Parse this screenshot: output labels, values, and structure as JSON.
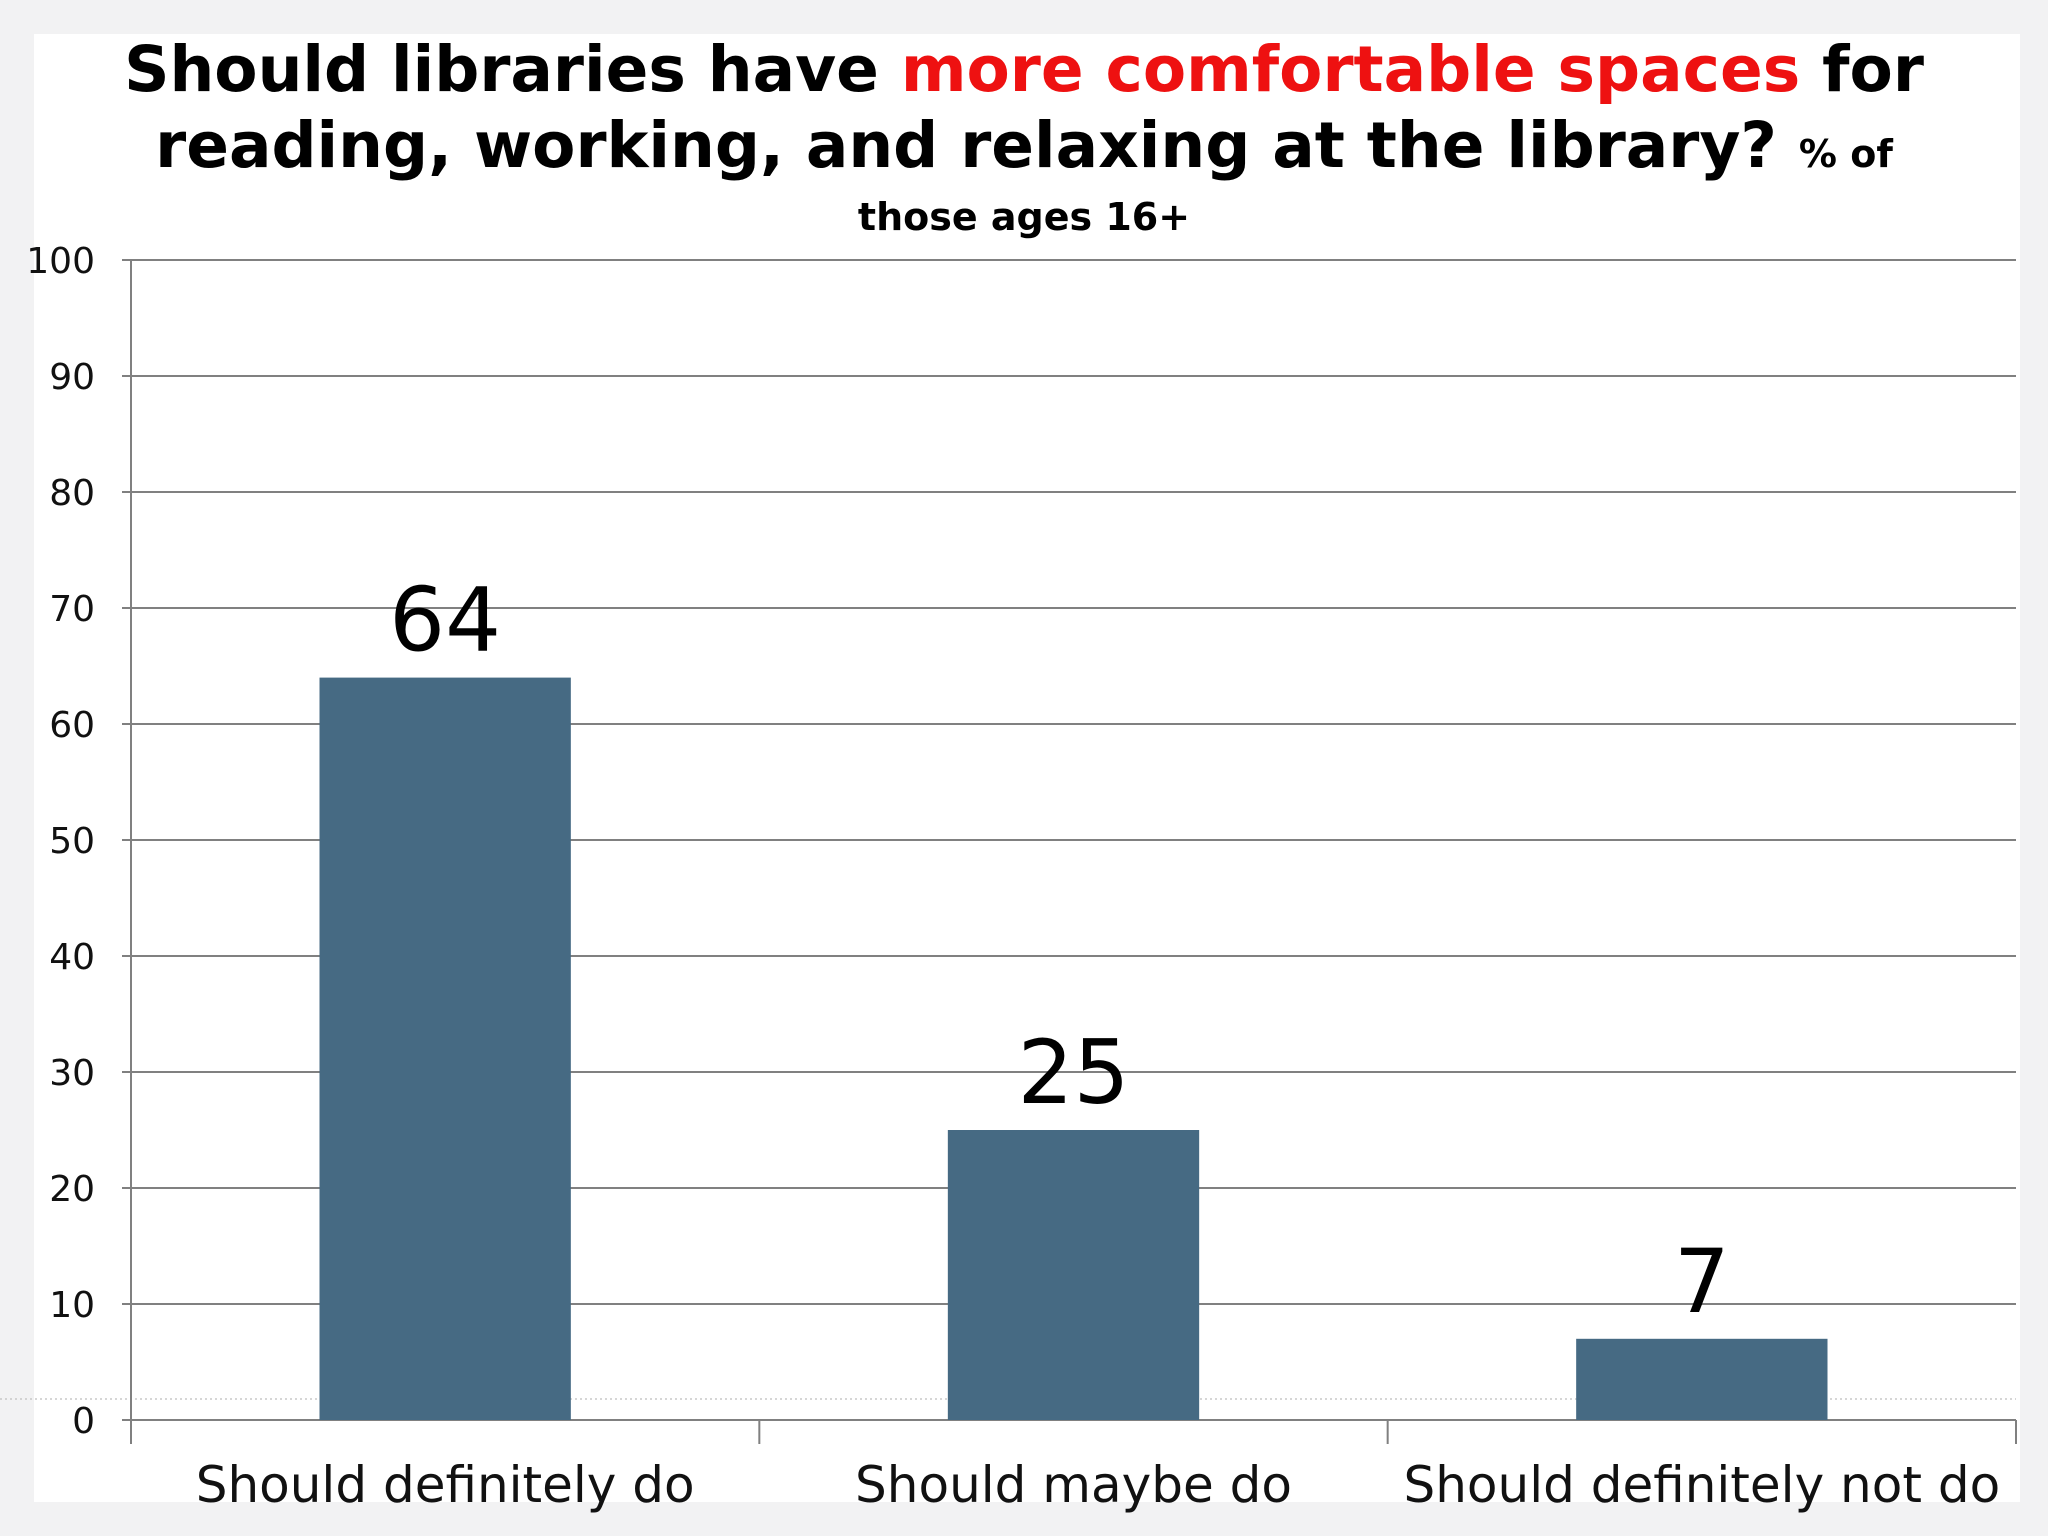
{
  "chart_data": {
    "type": "bar",
    "title_parts": {
      "part1": "Should libraries have ",
      "highlight": "more comfortable spaces",
      "part2": " for",
      "line2": "reading, working, and relaxing at the library?",
      "unit_a": "% of",
      "unit_b": "those ages 16+"
    },
    "categories": [
      "Should definitely do",
      "Should maybe do",
      "Should definitely not do"
    ],
    "values": [
      64,
      25,
      7
    ],
    "data_labels": [
      "64",
      "25",
      "7"
    ],
    "ylim": [
      0,
      100
    ],
    "yticks": [
      "0",
      "10",
      "20",
      "30",
      "40",
      "50",
      "60",
      "70",
      "80",
      "90",
      "100"
    ],
    "xlabel": "",
    "ylabel": "",
    "grid": true,
    "bar_color": "#466a83",
    "highlight_color": "#ee1111"
  }
}
